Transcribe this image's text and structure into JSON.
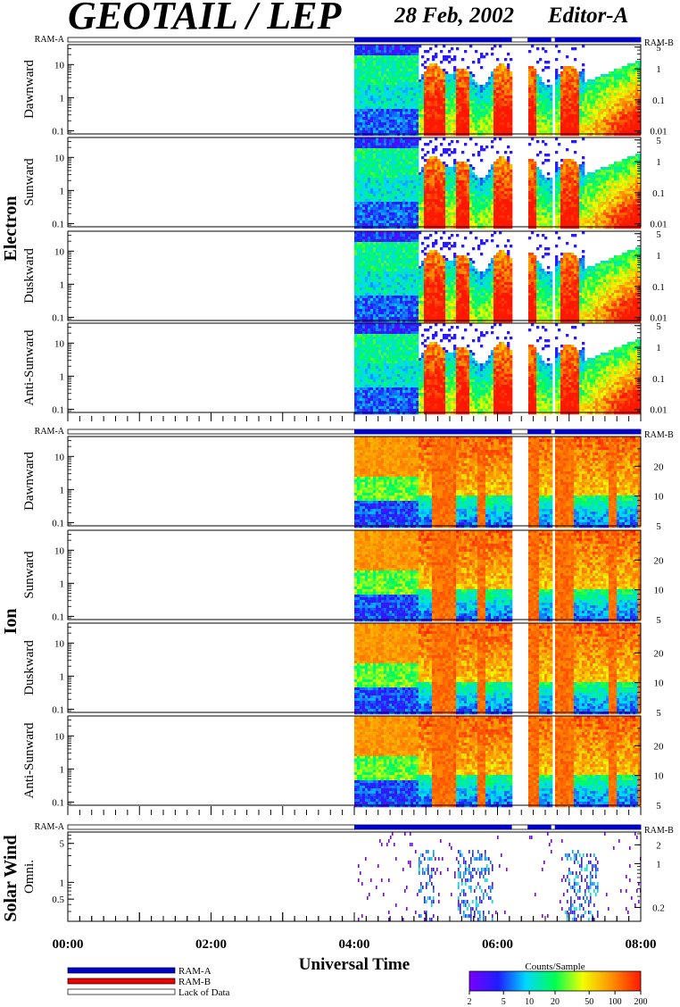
{
  "header": {
    "title": "GEOTAIL / LEP",
    "date": "28 Feb, 2002",
    "editor": "Editor-A"
  },
  "ram_labels": {
    "left": "RAM-A",
    "right": "RAM-B"
  },
  "groups": [
    {
      "name": "Electron",
      "panels": [
        "Dawnward",
        "Sunward",
        "Duskward",
        "Anti-Sunward"
      ]
    },
    {
      "name": "Ion",
      "panels": [
        "Dawnward",
        "Sunward",
        "Duskward",
        "Anti-Sunward"
      ]
    },
    {
      "name": "Solar Wind",
      "panels": [
        "Omni."
      ]
    }
  ],
  "xaxis": {
    "label": "Universal Time",
    "ticks": [
      "00:00",
      "02:00",
      "04:00",
      "06:00",
      "08:00"
    ]
  },
  "legend": {
    "items": [
      {
        "label": "RAM-A",
        "color": "#0000cc"
      },
      {
        "label": "RAM-B",
        "color": "#ee0000"
      },
      {
        "label": "Lack of Data",
        "color": "#ffffff"
      }
    ]
  },
  "colorbar": {
    "title": "Counts/Sample",
    "ticks": [
      "2",
      "5",
      "10",
      "20",
      "50",
      "100",
      "200"
    ]
  },
  "chart_data": {
    "type": "heatmap",
    "x_range_hours": [
      0,
      8
    ],
    "data_start_hours": 4.0,
    "data_gaps_hours": [
      [
        6.2,
        6.42
      ],
      [
        6.75,
        6.8
      ]
    ],
    "colorscale_range": [
      2,
      200
    ],
    "colorscale_log": true,
    "electron_panels": {
      "left_ticks": [
        "10",
        "1",
        "0.1"
      ],
      "left_range": [
        0.08,
        40
      ],
      "right_ticks": [
        "5",
        "1",
        "0.1",
        "0.01"
      ],
      "right_range": [
        0.008,
        6
      ]
    },
    "ion_panels": {
      "left_ticks": [
        "10",
        "1",
        "0.1"
      ],
      "left_range": [
        0.08,
        40
      ],
      "right_ticks": [
        "20",
        "10",
        "5"
      ],
      "right_range": [
        5,
        40
      ]
    },
    "solar_wind_panel": {
      "left_ticks": [
        "5",
        "1",
        "0.5"
      ],
      "left_range": [
        0.2,
        8
      ],
      "right_ticks": [
        "2",
        "1",
        "0.2"
      ],
      "right_range": [
        0.12,
        3.2
      ]
    }
  }
}
